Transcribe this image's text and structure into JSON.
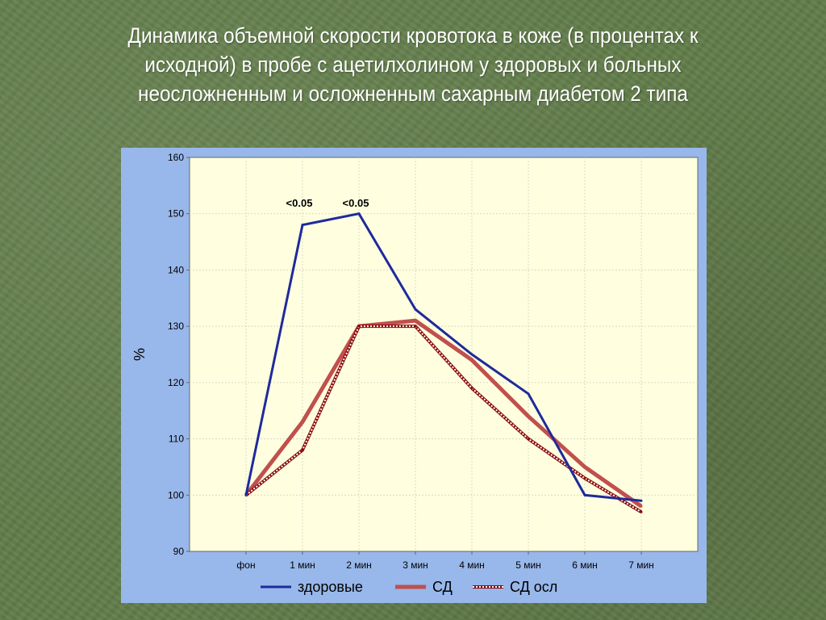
{
  "slide": {
    "title_lines": [
      "Динамика объемной скорости кровотока в коже (в процентах к",
      "исходной) в пробе с ацетилхолином у здоровых и больных",
      "неосложненным и осложненным сахарным диабетом 2 типа"
    ]
  },
  "chart_data": {
    "type": "line",
    "categories": [
      "фон",
      "1 мин",
      "2 мин",
      "3 мин",
      "4 мин",
      "5 мин",
      "6 мин",
      "7 мин"
    ],
    "ylabel": "%",
    "ylim": [
      90,
      160
    ],
    "yticks": [
      90,
      100,
      110,
      120,
      130,
      140,
      150,
      160
    ],
    "grid": true,
    "legend_position": "bottom",
    "series": [
      {
        "name": "здоровые",
        "color": "#1f2a9c",
        "style": "solid",
        "values": [
          100,
          148,
          150,
          133,
          125,
          118,
          100,
          99
        ]
      },
      {
        "name": "СД",
        "color": "#c0504d",
        "style": "solid-thick",
        "values": [
          100,
          113,
          130,
          131,
          124,
          114,
          105,
          98
        ]
      },
      {
        "name": "СД осл",
        "color": "#8b0a0a",
        "style": "dashed-white",
        "values": [
          100,
          108,
          130,
          130,
          119,
          110,
          103,
          97
        ]
      }
    ],
    "annotations": [
      {
        "text": "<0.05",
        "category": "1 мин",
        "value": 152
      },
      {
        "text": "<0.05",
        "category": "2 мин",
        "value": 152
      }
    ]
  }
}
